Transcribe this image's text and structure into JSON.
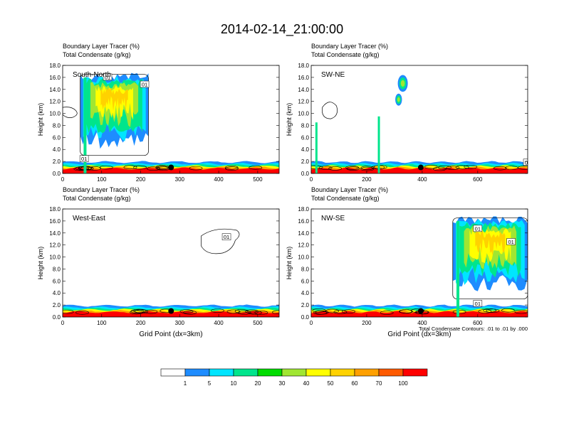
{
  "title": "2014-02-14_21:00:00",
  "colors": {
    "levels": [
      "#ffffff",
      "#1e8cff",
      "#00e5ff",
      "#00e58c",
      "#00dc00",
      "#a0e632",
      "#ffff00",
      "#ffd200",
      "#ffa000",
      "#ff5a00",
      "#ff0000"
    ]
  },
  "colorbar": {
    "labels": [
      "1",
      "5",
      "10",
      "20",
      "30",
      "40",
      "50",
      "60",
      "70",
      "100"
    ]
  },
  "chart_data": [
    {
      "type": "heatmap",
      "panel": "South-North",
      "label_line1": "Boundary Layer Tracer   (%)",
      "label_line2": "Total Condensate   (g/kg)",
      "ylabel": "Height (km)",
      "xlabel": "",
      "ylim": [
        0,
        18
      ],
      "xlim": [
        0,
        555
      ],
      "yticks": [
        "0.0",
        "2.0",
        "4.0",
        "6.0",
        "8.0",
        "10.0",
        "12.0",
        "14.0",
        "16.0",
        "18.0"
      ],
      "xticks": [
        0,
        100,
        200,
        300,
        400,
        500
      ],
      "marker_x": 278,
      "contour_labels": [
        "01",
        "01",
        "01"
      ],
      "cloud_regions": [
        [
          45,
          220
        ]
      ]
    },
    {
      "type": "heatmap",
      "panel": "SW-NE",
      "label_line1": "Boundary Layer Tracer   (%)",
      "label_line2": "Total Condensate   (g/kg)",
      "ylabel": "Height (km)",
      "xlabel": "",
      "ylim": [
        0,
        18
      ],
      "xlim": [
        0,
        780
      ],
      "yticks": [
        "0.0",
        "2.0",
        "4.0",
        "6.0",
        "8.0",
        "10.0",
        "12.0",
        "14.0",
        "16.0",
        "18.0"
      ],
      "xticks": [
        0,
        200,
        400,
        600
      ],
      "marker_x": 395,
      "contour_labels": [
        "01"
      ],
      "cloud_regions": [
        [
          310,
          360
        ]
      ]
    },
    {
      "type": "heatmap",
      "panel": "West-East",
      "label_line1": "Boundary Layer Tracer   (%)",
      "label_line2": "Total Condensate   (g/kg)",
      "ylabel": "Height (km)",
      "xlabel": "Grid Point (dx=3km)",
      "ylim": [
        0,
        18
      ],
      "xlim": [
        0,
        555
      ],
      "yticks": [
        "0.0",
        "2.0",
        "4.0",
        "6.0",
        "8.0",
        "10.0",
        "12.0",
        "14.0",
        "16.0",
        "18.0"
      ],
      "xticks": [
        0,
        100,
        200,
        300,
        400,
        500
      ],
      "marker_x": 278,
      "contour_labels": [
        "01"
      ],
      "cloud_regions": []
    },
    {
      "type": "heatmap",
      "panel": "NW-SE",
      "label_line1": "Boundary Layer Tracer   (%)",
      "label_line2": "Total Condensate   (g/kg)",
      "ylabel": "Height (km)",
      "xlabel": "Grid Point (dx=3km)",
      "ylim": [
        0,
        18
      ],
      "xlim": [
        0,
        780
      ],
      "yticks": [
        "0.0",
        "2.0",
        "4.0",
        "6.0",
        "8.0",
        "10.0",
        "12.0",
        "14.0",
        "16.0",
        "18.0"
      ],
      "xticks": [
        0,
        200,
        400,
        600
      ],
      "marker_x": 395,
      "contour_labels": [
        "01",
        "01",
        "01"
      ],
      "cloud_regions": [
        [
          510,
          780
        ]
      ],
      "contour_note": "Total Condensate Contours: .01 to .01 by .000"
    }
  ]
}
